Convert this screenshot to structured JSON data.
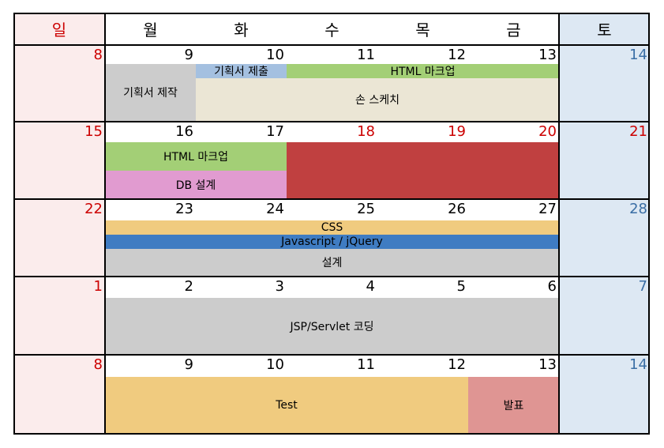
{
  "weekdays": [
    "일",
    "월",
    "화",
    "수",
    "목",
    "금",
    "토"
  ],
  "colors": {
    "sunday_bg": "#fbecec",
    "saturday_bg": "#dde8f3",
    "holiday_red": "#cc0000",
    "saturday_blue": "#3a6ea5",
    "green": "#a3cf76",
    "beige": "#ebe6d5",
    "gray": "#cccccc",
    "light_blue": "#a4c0e0",
    "pink": "#e19bd0",
    "dark_red": "#c04040",
    "orange": "#f0cb7f",
    "blue": "#3f7cc2",
    "rose": "#df9593"
  },
  "weeks": [
    {
      "days": [
        "8",
        "9",
        "10",
        "11",
        "12",
        "13",
        "14"
      ]
    },
    {
      "days": [
        "15",
        "16",
        "17",
        "18",
        "19",
        "20",
        "21"
      ]
    },
    {
      "days": [
        "22",
        "23",
        "24",
        "25",
        "26",
        "27",
        "28"
      ]
    },
    {
      "days": [
        "1",
        "2",
        "3",
        "4",
        "5",
        "6",
        "7"
      ]
    },
    {
      "days": [
        "8",
        "9",
        "10",
        "11",
        "12",
        "13",
        "14"
      ]
    }
  ],
  "events": {
    "plan_write": "기획서 제작",
    "plan_submit": "기획서 제출",
    "html_markup_1": "HTML 마크업",
    "hand_sketch": "손 스케치",
    "html_markup_2": "HTML 마크업",
    "db_design": "DB 설계",
    "css": "CSS",
    "javascript": "Javascript / jQuery",
    "design": "설계",
    "jsp_coding": "JSP/Servlet 코딩",
    "test": "Test",
    "presentation": "발표"
  }
}
